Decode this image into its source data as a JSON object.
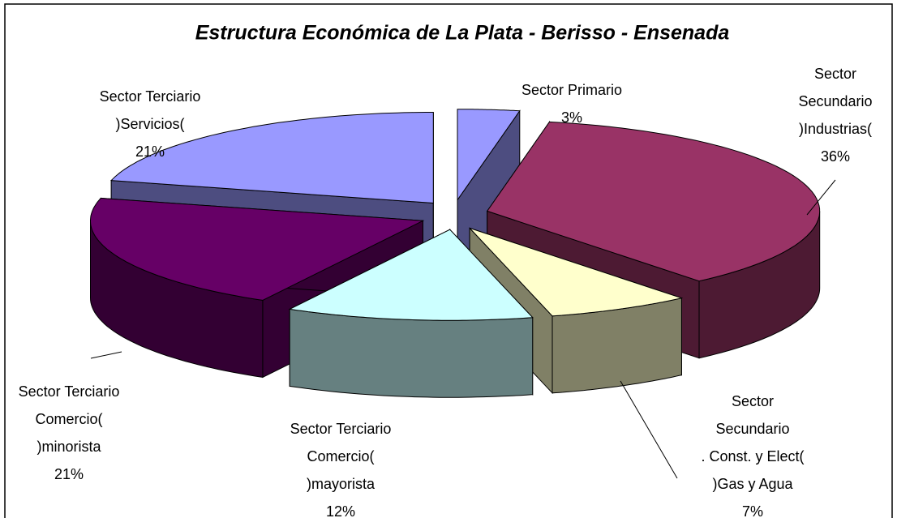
{
  "chart_data": {
    "type": "pie3d",
    "title": "Estructura Económica de La Plata - Berisso - Ensenada",
    "categories": [
      [
        "Sector Primario"
      ],
      [
        "Sector",
        "Secundario",
        ")Industrias("
      ],
      [
        "Sector",
        "Secundario",
        ". Const. y Elect(",
        ")Gas y Agua"
      ],
      [
        "Sector Terciario",
        "Comercio(",
        ")mayorista"
      ],
      [
        "Sector Terciario",
        "Comercio(",
        ")minorista"
      ],
      [
        "Sector Terciario",
        ")Servicios("
      ]
    ],
    "values": [
      3,
      36,
      7,
      12,
      21,
      21
    ],
    "value_labels": [
      "3%",
      "36%",
      "7%",
      "12%",
      "21%",
      "21%"
    ],
    "colors": [
      "#9999ff",
      "#993366",
      "#ffffcc",
      "#ccffff",
      "#660066",
      "#9999ff"
    ]
  }
}
